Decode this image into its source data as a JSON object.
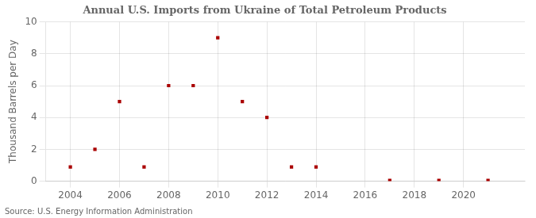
{
  "chart_data": {
    "type": "scatter",
    "title": "Annual U.S. Imports from Ukraine of Total Petroleum Products",
    "y_label": "Thousand Barrels per Day",
    "annotations": [
      "Source: U.S. Energy Information Administration"
    ],
    "x": [
      2004,
      2005,
      2006,
      2007,
      2008,
      2009,
      2010,
      2011,
      2012,
      2013,
      2014,
      2017,
      2019,
      2021
    ],
    "values": [
      0.9,
      2.0,
      5.0,
      0.9,
      6.0,
      6.0,
      9.0,
      5.0,
      4.0,
      0.9,
      0.9,
      0.05,
      0.05,
      0.05
    ],
    "color": "#aa0000",
    "marker": "square",
    "xlim": [
      2003.0,
      2022.5
    ],
    "xticks": [
      2004,
      2006,
      2008,
      2010,
      2012,
      2014,
      2016,
      2018,
      2020
    ],
    "ylim": [
      0,
      10
    ],
    "yticks": [
      0,
      2,
      4,
      6,
      8,
      10
    ],
    "grid": true
  }
}
